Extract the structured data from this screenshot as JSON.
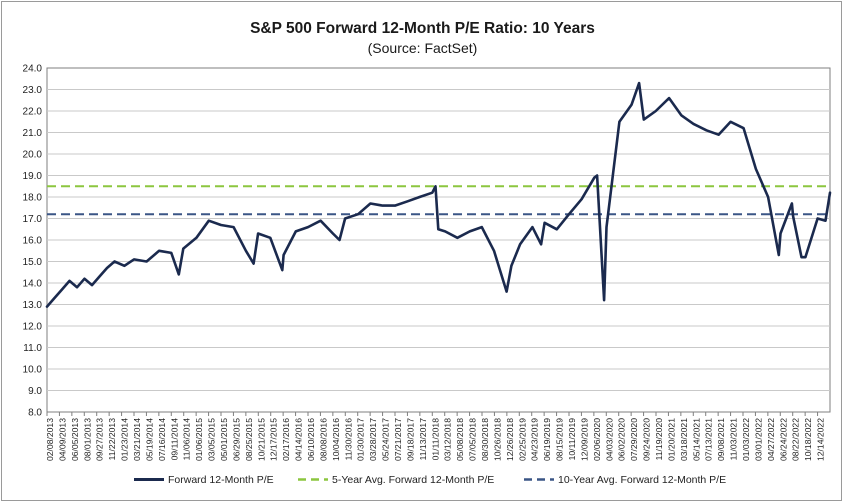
{
  "chart_data": {
    "type": "line",
    "title": "S&P 500 Forward 12-Month P/E Ratio: 10 Years",
    "subtitle": "(Source: FactSet)",
    "xlabel": "",
    "ylabel": "",
    "ylim": [
      8.0,
      24.0
    ],
    "y_ticks": [
      "8.0",
      "9.0",
      "10.0",
      "11.0",
      "12.0",
      "13.0",
      "14.0",
      "15.0",
      "16.0",
      "17.0",
      "18.0",
      "19.0",
      "20.0",
      "21.0",
      "22.0",
      "23.0",
      "24.0"
    ],
    "x_range": [
      "2013-02-08",
      "2023-02-10"
    ],
    "x_ticks": [
      "02/08/2013",
      "04/09/2013",
      "06/05/2013",
      "08/01/2013",
      "09/27/2013",
      "11/22/2013",
      "01/23/2014",
      "03/21/2014",
      "05/19/2014",
      "07/16/2014",
      "09/11/2014",
      "11/06/2014",
      "01/06/2015",
      "03/05/2015",
      "05/01/2015",
      "06/29/2015",
      "08/25/2015",
      "10/21/2015",
      "12/17/2015",
      "02/17/2016",
      "04/14/2016",
      "06/10/2016",
      "08/08/2016",
      "10/04/2016",
      "11/30/2016",
      "01/30/2017",
      "03/28/2017",
      "05/24/2017",
      "07/21/2017",
      "09/18/2017",
      "11/13/2017",
      "01/11/2018",
      "03/12/2018",
      "05/08/2018",
      "07/05/2018",
      "08/30/2018",
      "10/26/2018",
      "12/26/2018",
      "02/25/2019",
      "04/23/2019",
      "06/19/2019",
      "08/15/2019",
      "10/11/2019",
      "12/09/2019",
      "02/06/2020",
      "04/03/2020",
      "06/02/2020",
      "07/29/2020",
      "09/24/2020",
      "11/19/2020",
      "01/20/2021",
      "03/18/2021",
      "05/14/2021",
      "07/13/2021",
      "09/08/2021",
      "11/03/2021",
      "01/03/2022",
      "03/01/2022",
      "04/27/2022",
      "06/24/2022",
      "08/22/2022",
      "10/18/2022",
      "12/14/2022"
    ],
    "grid": true,
    "legend_position": "bottom",
    "series": [
      {
        "name": "Forward 12-Month P/E",
        "color": "#1b2a4e",
        "style": "solid",
        "x": [
          "2013-02-08",
          "2013-03-15",
          "2013-04-19",
          "2013-05-24",
          "2013-06-28",
          "2013-08-02",
          "2013-09-06",
          "2013-10-11",
          "2013-11-15",
          "2013-12-20",
          "2014-02-04",
          "2014-03-21",
          "2014-05-19",
          "2014-07-16",
          "2014-09-11",
          "2014-10-16",
          "2014-11-06",
          "2015-01-06",
          "2015-03-05",
          "2015-05-01",
          "2015-06-29",
          "2015-08-25",
          "2015-09-30",
          "2015-10-21",
          "2015-12-17",
          "2016-02-11",
          "2016-02-17",
          "2016-04-14",
          "2016-06-10",
          "2016-08-08",
          "2016-10-04",
          "2016-11-04",
          "2016-11-30",
          "2017-01-30",
          "2017-03-28",
          "2017-05-24",
          "2017-07-21",
          "2017-09-18",
          "2017-11-13",
          "2018-01-11",
          "2018-01-26",
          "2018-02-08",
          "2018-03-12",
          "2018-05-08",
          "2018-07-05",
          "2018-08-30",
          "2018-10-26",
          "2018-12-24",
          "2019-01-15",
          "2019-02-25",
          "2019-04-23",
          "2019-06-03",
          "2019-06-19",
          "2019-08-15",
          "2019-10-11",
          "2019-12-09",
          "2020-02-06",
          "2020-02-19",
          "2020-03-23",
          "2020-04-03",
          "2020-06-02",
          "2020-07-29",
          "2020-09-02",
          "2020-09-24",
          "2020-11-19",
          "2021-01-20",
          "2021-03-18",
          "2021-05-14",
          "2021-07-13",
          "2021-09-08",
          "2021-11-03",
          "2022-01-03",
          "2022-03-01",
          "2022-04-27",
          "2022-06-16",
          "2022-06-24",
          "2022-08-16",
          "2022-08-22",
          "2022-09-30",
          "2022-10-18",
          "2022-12-14",
          "2023-01-20",
          "2023-02-10"
        ],
        "values": [
          12.9,
          13.3,
          13.7,
          14.1,
          13.8,
          14.2,
          13.9,
          14.3,
          14.7,
          15.0,
          14.8,
          15.1,
          15.0,
          15.5,
          15.4,
          14.4,
          15.6,
          16.1,
          16.9,
          16.7,
          16.6,
          15.5,
          14.9,
          16.3,
          16.1,
          14.6,
          15.3,
          16.4,
          16.6,
          16.9,
          16.3,
          16.0,
          17.0,
          17.2,
          17.7,
          17.6,
          17.6,
          17.8,
          18.0,
          18.2,
          18.5,
          16.5,
          16.4,
          16.1,
          16.4,
          16.6,
          15.5,
          13.6,
          14.8,
          15.8,
          16.6,
          15.8,
          16.8,
          16.5,
          17.2,
          17.9,
          18.9,
          19.0,
          13.2,
          16.6,
          21.5,
          22.3,
          23.3,
          21.6,
          22.0,
          22.6,
          21.8,
          21.4,
          21.1,
          20.9,
          21.5,
          21.2,
          19.3,
          18.0,
          15.3,
          16.3,
          17.7,
          17.1,
          15.2,
          15.2,
          17.0,
          16.9,
          18.2
        ]
      },
      {
        "name": "5-Year Avg. Forward 12-Month P/E",
        "color": "#8cc63f",
        "style": "dashed",
        "values_constant": 18.5
      },
      {
        "name": "10-Year Avg. Forward 12-Month P/E",
        "color": "#3a5585",
        "style": "dashed",
        "values_constant": 17.2
      }
    ]
  },
  "legend": {
    "items": [
      {
        "label": "Forward 12-Month P/E"
      },
      {
        "label": "5-Year Avg. Forward 12-Month P/E"
      },
      {
        "label": "10-Year Avg. Forward 12-Month P/E"
      }
    ]
  }
}
